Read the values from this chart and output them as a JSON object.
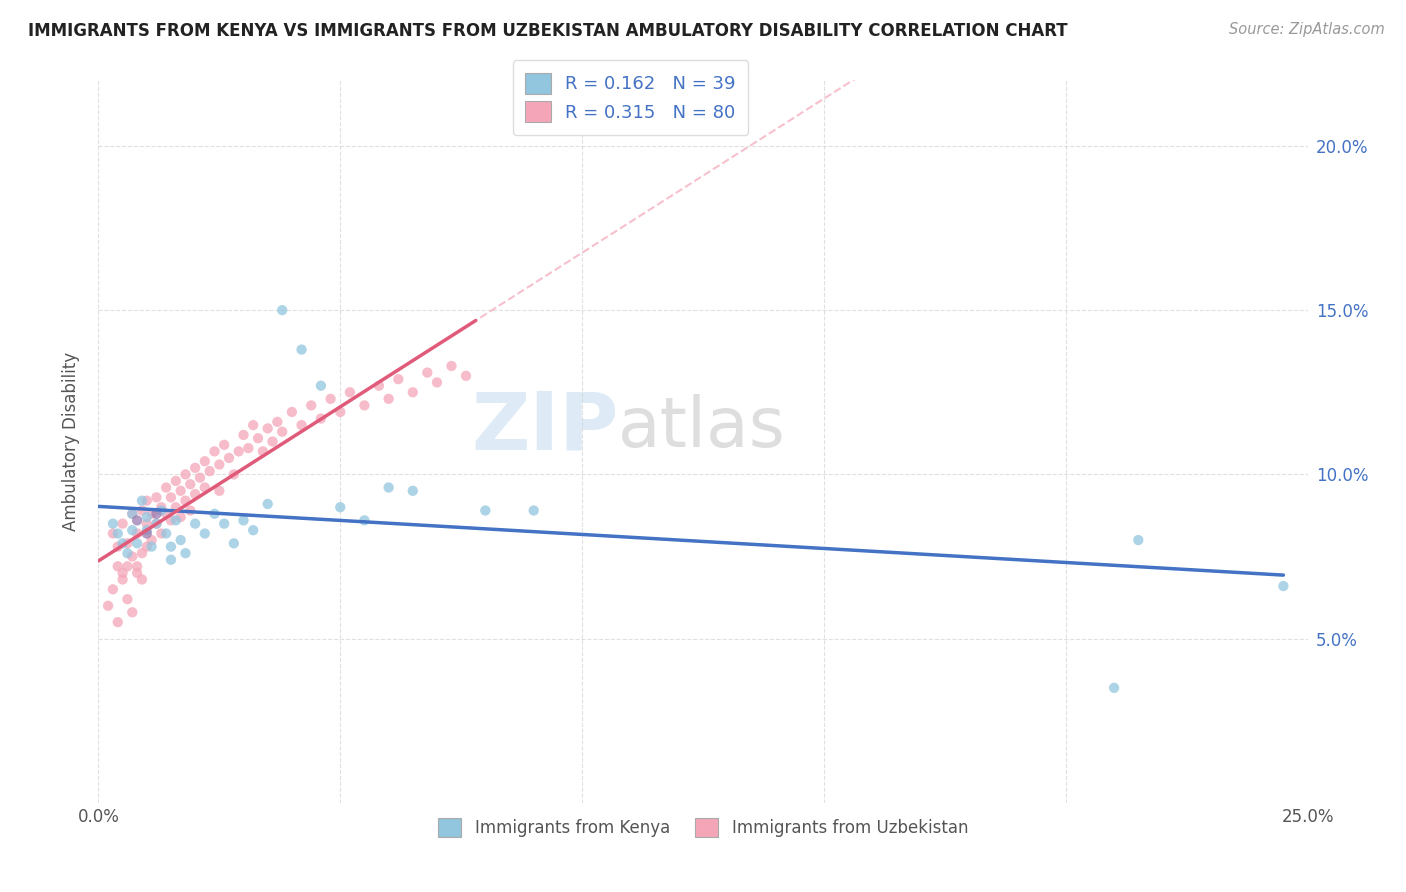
{
  "title": "IMMIGRANTS FROM KENYA VS IMMIGRANTS FROM UZBEKISTAN AMBULATORY DISABILITY CORRELATION CHART",
  "source": "Source: ZipAtlas.com",
  "ylabel": "Ambulatory Disability",
  "xlim": [
    0.0,
    0.25
  ],
  "ylim": [
    0.0,
    0.22
  ],
  "x_tick_positions": [
    0.0,
    0.05,
    0.1,
    0.15,
    0.2,
    0.25
  ],
  "x_tick_labels": [
    "0.0%",
    "",
    "",
    "",
    "",
    "25.0%"
  ],
  "y_tick_positions": [
    0.05,
    0.1,
    0.15,
    0.2
  ],
  "y_tick_labels": [
    "5.0%",
    "10.0%",
    "15.0%",
    "20.0%"
  ],
  "kenya_color": "#92c5de",
  "kenya_line_color": "#4472c4",
  "uzbekistan_color": "#f4a6b8",
  "uzbekistan_line_color": "#e05a7a",
  "uzbekistan_dash_color": "#f4a6b8",
  "kenya_R": 0.162,
  "kenya_N": 39,
  "uzbekistan_R": 0.315,
  "uzbekistan_N": 80,
  "watermark_zip": "ZIP",
  "watermark_atlas": "atlas",
  "background_color": "#ffffff",
  "grid_color": "#cccccc",
  "kenya_x": [
    0.003,
    0.004,
    0.005,
    0.006,
    0.007,
    0.007,
    0.008,
    0.009,
    0.01,
    0.01,
    0.011,
    0.012,
    0.013,
    0.014,
    0.015,
    0.015,
    0.016,
    0.017,
    0.018,
    0.02,
    0.022,
    0.024,
    0.026,
    0.028,
    0.03,
    0.032,
    0.035,
    0.038,
    0.042,
    0.046,
    0.05,
    0.055,
    0.06,
    0.065,
    0.08,
    0.09,
    0.21,
    0.215,
    0.245
  ],
  "kenya_y": [
    0.085,
    0.082,
    0.079,
    0.076,
    0.088,
    0.083,
    0.079,
    0.092,
    0.087,
    0.083,
    0.078,
    0.085,
    0.089,
    0.082,
    0.078,
    0.074,
    0.086,
    0.08,
    0.076,
    0.085,
    0.082,
    0.088,
    0.085,
    0.079,
    0.086,
    0.083,
    0.091,
    0.15,
    0.138,
    0.127,
    0.09,
    0.086,
    0.096,
    0.095,
    0.089,
    0.089,
    0.035,
    0.08,
    0.066
  ],
  "uzbekistan_x": [
    0.003,
    0.004,
    0.004,
    0.005,
    0.005,
    0.006,
    0.006,
    0.007,
    0.007,
    0.008,
    0.008,
    0.009,
    0.009,
    0.01,
    0.01,
    0.01,
    0.011,
    0.011,
    0.012,
    0.012,
    0.013,
    0.013,
    0.014,
    0.014,
    0.015,
    0.015,
    0.016,
    0.016,
    0.017,
    0.017,
    0.018,
    0.018,
    0.019,
    0.019,
    0.02,
    0.02,
    0.021,
    0.022,
    0.022,
    0.023,
    0.024,
    0.025,
    0.025,
    0.026,
    0.027,
    0.028,
    0.029,
    0.03,
    0.031,
    0.032,
    0.033,
    0.034,
    0.035,
    0.036,
    0.037,
    0.038,
    0.04,
    0.042,
    0.044,
    0.046,
    0.048,
    0.05,
    0.052,
    0.055,
    0.058,
    0.06,
    0.062,
    0.065,
    0.068,
    0.07,
    0.073,
    0.076,
    0.002,
    0.003,
    0.004,
    0.005,
    0.006,
    0.007,
    0.008,
    0.009
  ],
  "uzbekistan_y": [
    0.082,
    0.078,
    0.072,
    0.085,
    0.068,
    0.079,
    0.072,
    0.088,
    0.075,
    0.082,
    0.07,
    0.089,
    0.076,
    0.092,
    0.085,
    0.078,
    0.088,
    0.08,
    0.093,
    0.085,
    0.09,
    0.082,
    0.096,
    0.088,
    0.093,
    0.086,
    0.098,
    0.09,
    0.095,
    0.087,
    0.1,
    0.092,
    0.097,
    0.089,
    0.102,
    0.094,
    0.099,
    0.104,
    0.096,
    0.101,
    0.107,
    0.103,
    0.095,
    0.109,
    0.105,
    0.1,
    0.107,
    0.112,
    0.108,
    0.115,
    0.111,
    0.107,
    0.114,
    0.11,
    0.116,
    0.113,
    0.119,
    0.115,
    0.121,
    0.117,
    0.123,
    0.119,
    0.125,
    0.121,
    0.127,
    0.123,
    0.129,
    0.125,
    0.131,
    0.128,
    0.133,
    0.13,
    0.06,
    0.065,
    0.055,
    0.07,
    0.062,
    0.058,
    0.072,
    0.068
  ]
}
